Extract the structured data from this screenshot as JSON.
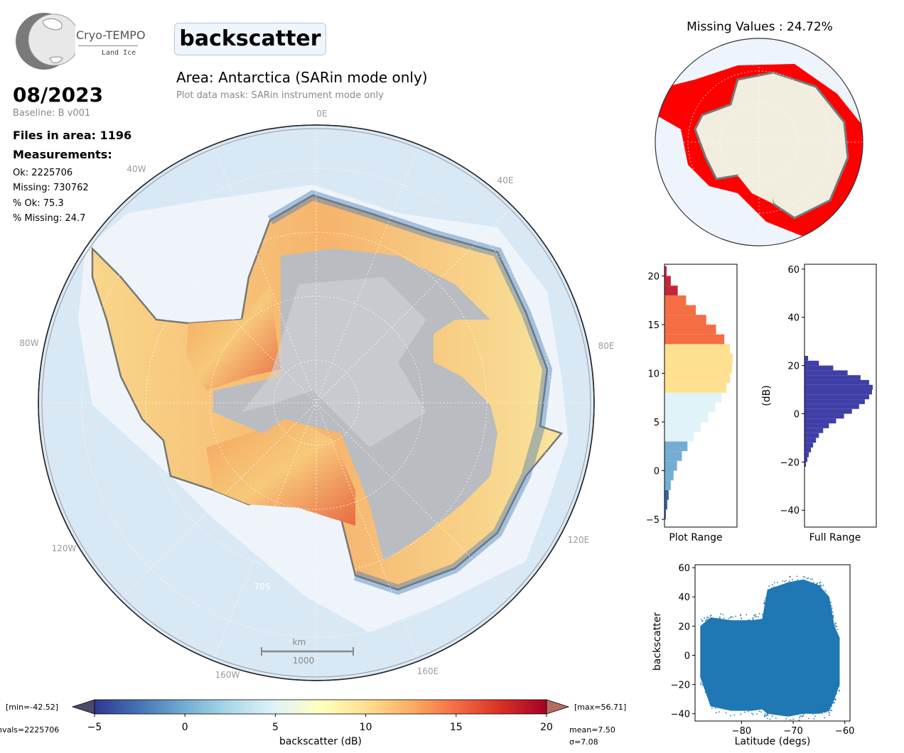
{
  "logo": {
    "name": "Cryo-TEMPO",
    "sub": "Land Ice"
  },
  "variable": "backscatter",
  "area_title": "Area: Antarctica (SARin mode only)",
  "mask_note": "Plot data mask: SARin instrument mode only",
  "date": "08/2023",
  "baseline": "Baseline: B v001",
  "files": "Files in area: 1196",
  "measurements_title": "Measurements:",
  "stats": {
    "ok": "Ok: 2225706",
    "missing": "Missing: 730762",
    "pct_ok": "% Ok: 75.3",
    "pct_missing": "% Missing: 24.7"
  },
  "map": {
    "lon_labels": [
      "0E",
      "40E",
      "80E",
      "120E",
      "160E",
      "160W",
      "120W",
      "80W",
      "40W"
    ],
    "lat_label": "70S",
    "scale_unit": "km",
    "scale_value": "1000"
  },
  "missing_map": {
    "title": "Missing Values : 24.72%"
  },
  "colorbar": {
    "min_label": "[min=-42.52]",
    "max_label": "[max=56.71]",
    "nvals_label": "nvals=2225706",
    "mean_label": "mean=7.50",
    "sigma_label": "σ=7.08",
    "xlabel": "backscatter (dB)",
    "ticks": [
      "−5",
      "0",
      "5",
      "10",
      "15",
      "20"
    ],
    "range": [
      -5,
      20
    ]
  },
  "chart_data": [
    {
      "type": "bar",
      "title": "",
      "xlabel": "Plot Range",
      "ylabel": "",
      "orientation": "horizontal",
      "ylim": [
        -5.8,
        21.2
      ],
      "yticks": [
        "−5",
        "0",
        "5",
        "10",
        "15",
        "20"
      ],
      "bins": [
        -5,
        -4,
        -3,
        -2,
        -1,
        0,
        1,
        2,
        3,
        4,
        5,
        6,
        7,
        8,
        9,
        10,
        11,
        12,
        13,
        14,
        15,
        16,
        17,
        18,
        19,
        20
      ],
      "counts": [
        2,
        4,
        6,
        9,
        13,
        18,
        25,
        33,
        42,
        52,
        63,
        73,
        82,
        89,
        94,
        97,
        98,
        94,
        86,
        74,
        60,
        45,
        31,
        19,
        9,
        3
      ]
    },
    {
      "type": "bar",
      "title": "",
      "xlabel": "Full Range",
      "ylabel": "(dB)",
      "orientation": "horizontal",
      "ylim": [
        -47,
        62
      ],
      "yticks": [
        "60",
        "40",
        "20",
        "0",
        "−20",
        "−40"
      ],
      "color": "#3f3fa8",
      "bins": [
        -22,
        -20,
        -18,
        -16,
        -14,
        -12,
        -10,
        -8,
        -6,
        -4,
        -2,
        0,
        2,
        4,
        6,
        8,
        10,
        12,
        14,
        16,
        18,
        20,
        22
      ],
      "counts": [
        2,
        4,
        6,
        9,
        12,
        16,
        20,
        26,
        34,
        44,
        55,
        66,
        76,
        84,
        90,
        94,
        95,
        90,
        78,
        60,
        40,
        20,
        5
      ]
    },
    {
      "type": "scatter",
      "title": "",
      "xlabel": "Latitude (degs)",
      "ylabel": "backscatter",
      "xlim": [
        -89,
        -59
      ],
      "ylim": [
        -45,
        62
      ],
      "xticks": [
        "−80",
        "−70",
        "−60"
      ],
      "yticks": [
        "60",
        "40",
        "20",
        "0",
        "−20",
        "−40"
      ],
      "color": "#1f77b4",
      "envelope": [
        {
          "lat": -88,
          "low": -15,
          "high": 20
        },
        {
          "lat": -86,
          "low": -35,
          "high": 26
        },
        {
          "lat": -82,
          "low": -38,
          "high": 24
        },
        {
          "lat": -78,
          "low": -38,
          "high": 24
        },
        {
          "lat": -76,
          "low": -37,
          "high": 25
        },
        {
          "lat": -75,
          "low": -40,
          "high": 45
        },
        {
          "lat": -71,
          "low": -42,
          "high": 50
        },
        {
          "lat": -68,
          "low": -40,
          "high": 52
        },
        {
          "lat": -65,
          "low": -40,
          "high": 48
        },
        {
          "lat": -63,
          "low": -38,
          "high": 40
        },
        {
          "lat": -62,
          "low": -30,
          "high": 20
        },
        {
          "lat": -61,
          "low": -20,
          "high": 12
        }
      ]
    }
  ]
}
